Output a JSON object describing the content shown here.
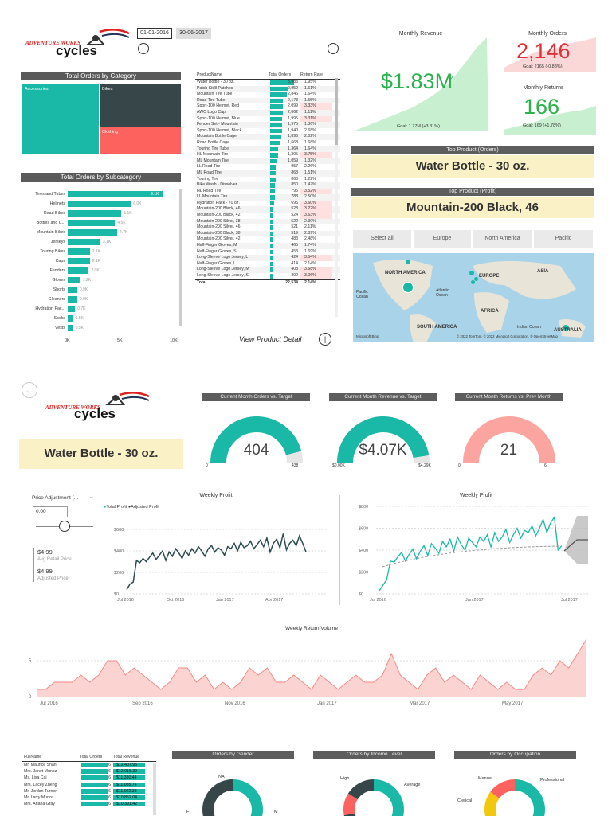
{
  "logo": {
    "line1": "ADVENTURE WORKS",
    "line2": "cycles"
  },
  "date_range": {
    "start": "01-01-2016",
    "end": "30-06-2017"
  },
  "category": {
    "title": "Total Orders by Category",
    "tiles": [
      {
        "label": "Accessories",
        "color": "#1ab8a6"
      },
      {
        "label": "Bikes",
        "color": "#374649"
      },
      {
        "label": "Clothing",
        "color": "#fd625e"
      }
    ]
  },
  "subcategory": {
    "title": "Total Orders by Subcategory",
    "items": [
      {
        "name": "Tires and Tubes",
        "value": "9.1K",
        "v": 9.1
      },
      {
        "name": "Helmets",
        "value": "6.0K",
        "v": 6.0
      },
      {
        "name": "Road Bikes",
        "value": "5.1K",
        "v": 5.1
      },
      {
        "name": "Bottles and C...",
        "value": "4.5K",
        "v": 4.5
      },
      {
        "name": "Mountain Bikes",
        "value": "4.7K",
        "v": 4.7
      },
      {
        "name": "Jerseys",
        "value": "3.1K",
        "v": 3.1
      },
      {
        "name": "Touring Bikes",
        "value": "2.1K",
        "v": 2.1
      },
      {
        "name": "Caps",
        "value": "2.1K",
        "v": 2.1
      },
      {
        "name": "Fenders",
        "value": "2.0K",
        "v": 2.0
      },
      {
        "name": "Gloves",
        "value": "1.2K",
        "v": 1.2
      },
      {
        "name": "Shorts",
        "value": "0.9K",
        "v": 0.9
      },
      {
        "name": "Cleaners",
        "value": "0.9K",
        "v": 0.9
      },
      {
        "name": "Hydration Pac...",
        "value": "0.7K",
        "v": 0.7
      },
      {
        "name": "Socks",
        "value": "0.5K",
        "v": 0.5
      },
      {
        "name": "Vests",
        "value": "0.5K",
        "v": 0.5
      }
    ],
    "axis": [
      "0K",
      "5K",
      "10K"
    ]
  },
  "product_table": {
    "headers": [
      "ProductName",
      "Total Orders",
      "Return Rate"
    ],
    "rows": [
      [
        "Water Bottle - 30 oz.",
        "3,983",
        "1.95%",
        3983,
        false
      ],
      [
        "Patch Kit/8 Patches",
        "2,952",
        "1.61%",
        2952,
        false
      ],
      [
        "Mountain Tire Tube",
        "2,846",
        "1.64%",
        2846,
        false
      ],
      [
        "Road Tire Tube",
        "2,173",
        "1.55%",
        2173,
        false
      ],
      [
        "Sport-100 Helmet, Red",
        "2,099",
        "3.33%",
        2099,
        true
      ],
      [
        "AWC Logo Cap",
        "2,062",
        "1.11%",
        2062,
        false
      ],
      [
        "Sport-100 Helmet, Blue",
        "1,995",
        "3.31%",
        1995,
        true
      ],
      [
        "Fender Set - Mountain",
        "1,975",
        "1.36%",
        1975,
        false
      ],
      [
        "Sport-100 Helmet, Black",
        "1,940",
        "2.68%",
        1940,
        false
      ],
      [
        "Mountain Bottle Cage",
        "1,896",
        "2.02%",
        1896,
        false
      ],
      [
        "Road Bottle Cage",
        "1,668",
        "1.68%",
        1668,
        false
      ],
      [
        "Touring Tire Tube",
        "1,364",
        "1.64%",
        1364,
        false
      ],
      [
        "HL Mountain Tire",
        "1,305",
        "3.75%",
        1305,
        true
      ],
      [
        "ML Mountain Tire",
        "1,059",
        "1.32%",
        1059,
        false
      ],
      [
        "LL Road Tire",
        "957",
        "2.26%",
        957,
        false
      ],
      [
        "ML Road Tire",
        "868",
        "1.51%",
        868,
        false
      ],
      [
        "Touring Tire",
        "863",
        "1.22%",
        863,
        false
      ],
      [
        "Bike Wash - Dissolver",
        "850",
        "1.47%",
        850,
        false
      ],
      [
        "HL Road Tire",
        "795",
        "3.52%",
        795,
        true
      ],
      [
        "LL Mountain Tire",
        "788",
        "2.50%",
        788,
        false
      ],
      [
        "Hydration Pack - 70 oz.",
        "695",
        "3.60%",
        695,
        true
      ],
      [
        "Mountain-200 Black, 46",
        "528",
        "3.22%",
        528,
        true
      ],
      [
        "Mountain-200 Black, 42",
        "524",
        "3.63%",
        524,
        true
      ],
      [
        "Mountain-200 Silver, 38",
        "522",
        "2.30%",
        522,
        false
      ],
      [
        "Mountain-200 Silver, 46",
        "521",
        "2.11%",
        521,
        false
      ],
      [
        "Mountain-200 Black, 38",
        "519",
        "2.89%",
        519,
        false
      ],
      [
        "Mountain-200 Silver, 42",
        "483",
        "2.48%",
        483,
        false
      ],
      [
        "Half-Finger Gloves, M",
        "465",
        "1.74%",
        465,
        false
      ],
      [
        "Half-Finger Gloves, S",
        "453",
        "1.69%",
        453,
        false
      ],
      [
        "Long-Sleeve Logo Jersey, L",
        "424",
        "3.54%",
        424,
        true
      ],
      [
        "Half-Finger Gloves, L",
        "414",
        "2.14%",
        414,
        false
      ],
      [
        "Long-Sleeve Logo Jersey, M",
        "408",
        "3.68%",
        408,
        true
      ],
      [
        "Long-Sleeve Logo Jersey, S",
        "392",
        "3.06%",
        392,
        true
      ]
    ],
    "total": [
      "Total",
      "22,534",
      "2.14%"
    ],
    "link": "View Product Detail"
  },
  "kpis": {
    "revenue": {
      "title": "Monthly Revenue",
      "value": "$1.83M",
      "goal": "Goal: 1.77M (+3.31%)"
    },
    "orders": {
      "title": "Monthly Orders",
      "value": "2,146",
      "goal": "Goal: 2165 (-0.88%)"
    },
    "returns": {
      "title": "Monthly Returns",
      "value": "166",
      "goal": "Goal: 169 (+1.78%)"
    }
  },
  "top_orders": {
    "title": "Top Product (Orders)",
    "value": "Water Bottle - 30 oz."
  },
  "top_profit": {
    "title": "Top Product (Profit)",
    "value": "Mountain-200 Black, 46"
  },
  "regions": [
    "Select all",
    "Europe",
    "North America",
    "Pacific"
  ],
  "map": {
    "labels": [
      "NORTH AMERICA",
      "EUROPE",
      "ASIA",
      "AFRICA",
      "SOUTH AMERICA",
      "AUSTRALIA",
      "Pacific Ocean",
      "Atlantic Ocean",
      "Indian Ocean"
    ],
    "credit": "© 2022 TomTom, © 2022 Microsoft Corporation, © OpenStreetMap",
    "brand": "Microsoft Bing"
  },
  "detail_banner": "Water Bottle - 30 oz.",
  "gauges": [
    {
      "title": "Current Month Orders vs. Target",
      "value": "404",
      "min": "0",
      "max": "438",
      "fraction": 0.92,
      "color": "#1ab8a6"
    },
    {
      "title": "Current Month Revenue vs. Target",
      "value": "$4.07K",
      "min": "$0.00K",
      "max": "$4.29K",
      "fraction": 0.95,
      "color": "#1ab8a6"
    },
    {
      "title": "Current Month Returns vs. Prev Month",
      "value": "21",
      "min": "0",
      "max": "6",
      "fraction": 1.0,
      "color": "#fca5a0"
    }
  ],
  "price_adj": {
    "title": "Price Adjustment (...",
    "input": "0.00",
    "avg_price": "$4.99",
    "avg_label": "Avg Retail Price",
    "adj_price": "$4.99",
    "adj_label": "Adjusted Price"
  },
  "weekly_profit_1": {
    "title": "Weekly Profit",
    "legend": [
      "Total Profit",
      "Adjusted Profit"
    ],
    "yticks": [
      "$0",
      "$200",
      "$400",
      "$600"
    ],
    "xticks": [
      "Jul 2016",
      "Oct 2016",
      "Jan 2017",
      "Apr 2017"
    ]
  },
  "weekly_profit_2": {
    "title": "Weekly Profit",
    "yticks": [
      "$0",
      "$200",
      "$400",
      "$600",
      "$800"
    ],
    "xticks": [
      "Jul 2016",
      "Jan 2017",
      "Jul 2017"
    ]
  },
  "weekly_returns": {
    "title": "Weekly Return Volume",
    "yticks": [
      "0",
      "5"
    ],
    "xticks": [
      "Jul 2016",
      "Sep 2016",
      "Nov 2016",
      "Jan 2017",
      "Mar 2017",
      "May 2017"
    ]
  },
  "customer_table": {
    "headers": [
      "FullName",
      "Total Orders",
      "Total Revenue"
    ],
    "rows": [
      [
        "Mr. Maurice Shan",
        "6",
        "$12,407.95"
      ],
      [
        "Mrs. Janet Munoz",
        "6",
        "$12,015.39"
      ],
      [
        "Ms. Lisa Cai",
        "6",
        "$11,330.44"
      ],
      [
        "Mrs. Lacey Zheng",
        "6",
        "$11,085.74"
      ],
      [
        "Mr. Jordan Turner",
        "6",
        "$11,022.38"
      ],
      [
        "Mr. Larry Munoz",
        "6",
        "$10,852.04"
      ],
      [
        "Mrs. Ariana Gray",
        "6",
        "$10,391.42"
      ]
    ]
  },
  "donuts": [
    {
      "title": "Orders by Gender",
      "labels": [
        "NA",
        "F",
        "M"
      ]
    },
    {
      "title": "Orders by Income Level",
      "labels": [
        "High",
        "Average"
      ]
    },
    {
      "title": "Orders by Occupation",
      "labels": [
        "Manual",
        "Professional",
        "Clerical"
      ]
    }
  ],
  "colors": {
    "teal": "#1ab8a6",
    "dark": "#374649",
    "red": "#fd625e",
    "kpi_green": "#2bb24c",
    "kpi_red": "#e0303a"
  }
}
